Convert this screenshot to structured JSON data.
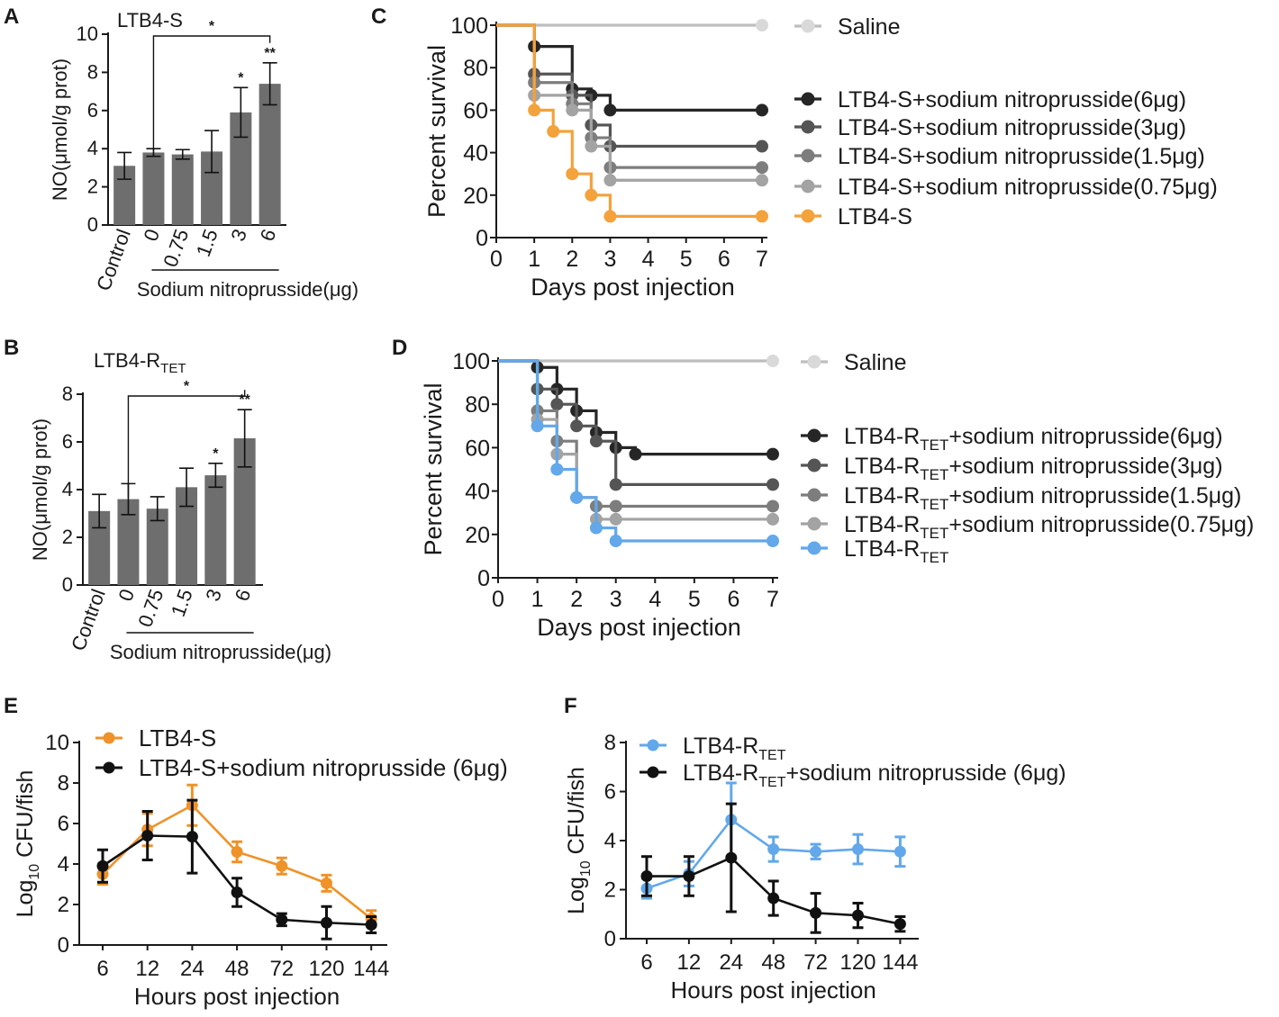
{
  "colors": {
    "bar": "#6e6e6e",
    "orange": "#f4a23b",
    "orange_line": "#ef9228",
    "blue": "#62a8ea",
    "black": "#111111",
    "g6": "#262626",
    "g3": "#555555",
    "g15": "#7d7d7d",
    "g075": "#a3a3a3",
    "saline": "#bdbdbd",
    "saline_dot": "#d9d9d9"
  },
  "chart_data": [
    {
      "panel": "A",
      "type": "bar",
      "title": "LTB4-S",
      "ylabel": "NO(μmol/g prot)",
      "ylim": [
        0,
        10
      ],
      "yticks": [
        "0",
        "2",
        "4",
        "6",
        "8",
        "10"
      ],
      "categories": [
        "Control",
        "0",
        "0.75",
        "1.5",
        "3",
        "6"
      ],
      "values": [
        3.1,
        3.8,
        3.7,
        3.85,
        5.9,
        7.4
      ],
      "errors": [
        0.7,
        0.2,
        0.25,
        1.1,
        1.3,
        1.1
      ],
      "group_label": "Sodium nitroprusside(μg)",
      "significance": [
        "",
        "",
        "",
        "",
        "*",
        "**"
      ],
      "bracket": {
        "from": "0",
        "to": "6",
        "label": "*"
      }
    },
    {
      "panel": "B",
      "type": "bar",
      "title_main": "LTB4-R",
      "title_sub": "TET",
      "ylabel": "NO(μmol/g prot)",
      "ylim": [
        0,
        8
      ],
      "yticks": [
        "0",
        "2",
        "4",
        "6",
        "8"
      ],
      "categories": [
        "Control",
        "0",
        "0.75",
        "1.5",
        "3",
        "6"
      ],
      "values": [
        3.1,
        3.6,
        3.2,
        4.1,
        4.6,
        6.15
      ],
      "errors": [
        0.7,
        0.65,
        0.5,
        0.8,
        0.5,
        1.2
      ],
      "group_label": "Sodium nitroprusside(μg)",
      "significance": [
        "",
        "",
        "",
        "",
        "*",
        "**"
      ],
      "bracket": {
        "from": "0",
        "to": "6",
        "label": "*"
      }
    },
    {
      "panel": "C",
      "type": "line",
      "subtype": "survival",
      "xlabel": "Days post injection",
      "ylabel": "Percent survival",
      "xlim": [
        0,
        7
      ],
      "ylim": [
        0,
        100
      ],
      "xticks": [
        "0",
        "1",
        "2",
        "3",
        "4",
        "5",
        "6",
        "7"
      ],
      "yticks": [
        "0",
        "20",
        "40",
        "60",
        "80",
        "100"
      ],
      "series": [
        {
          "name": "Saline",
          "color_key": "saline",
          "dot_key": "saline_dot",
          "steps": [
            [
              0,
              100
            ],
            [
              7,
              100
            ]
          ],
          "marks": [
            7
          ]
        },
        {
          "name": "LTB4-S+sodium nitroprusside(6μg)",
          "color_key": "g6",
          "steps": [
            [
              0,
              100
            ],
            [
              1,
              90
            ],
            [
              2,
              70
            ],
            [
              2.5,
              67
            ],
            [
              3,
              60
            ],
            [
              7,
              60
            ]
          ],
          "marks": [
            1,
            2,
            2.5,
            3,
            7
          ]
        },
        {
          "name": "LTB4-S+sodium nitroprusside(3μg)",
          "color_key": "g3",
          "steps": [
            [
              0,
              100
            ],
            [
              1,
              77
            ],
            [
              2,
              67
            ],
            [
              2.5,
              53
            ],
            [
              3,
              43
            ],
            [
              7,
              43
            ]
          ],
          "marks": [
            1,
            2,
            2.5,
            3,
            7
          ]
        },
        {
          "name": "LTB4-S+sodium nitroprusside(1.5μg)",
          "color_key": "g15",
          "steps": [
            [
              0,
              100
            ],
            [
              1,
              73
            ],
            [
              2,
              63
            ],
            [
              2.5,
              47
            ],
            [
              3,
              33
            ],
            [
              7,
              33
            ]
          ],
          "marks": [
            1,
            2,
            2.5,
            3,
            7
          ]
        },
        {
          "name": "LTB4-S+sodium nitroprusside(0.75μg)",
          "color_key": "g075",
          "steps": [
            [
              0,
              100
            ],
            [
              1,
              67
            ],
            [
              2,
              60
            ],
            [
              2.5,
              43
            ],
            [
              3,
              27
            ],
            [
              7,
              27
            ]
          ],
          "marks": [
            1,
            2,
            2.5,
            3,
            7
          ]
        },
        {
          "name": "LTB4-S",
          "color_key": "orange",
          "steps": [
            [
              0,
              100
            ],
            [
              1,
              60
            ],
            [
              1.5,
              50
            ],
            [
              2,
              30
            ],
            [
              2.5,
              20
            ],
            [
              3,
              10
            ],
            [
              7,
              10
            ]
          ],
          "marks": [
            1,
            1.5,
            2,
            2.5,
            3,
            7
          ]
        }
      ],
      "legend": [
        {
          "text": "Saline",
          "sub": "",
          "tail": ""
        },
        {
          "text": "LTB4-S+sodium nitroprusside(6μg)",
          "sub": "",
          "tail": ""
        },
        {
          "text": "LTB4-S+sodium nitroprusside(3μg)",
          "sub": "",
          "tail": ""
        },
        {
          "text": "LTB4-S+sodium nitroprusside(1.5μg)",
          "sub": "",
          "tail": ""
        },
        {
          "text": "LTB4-S+sodium nitroprusside(0.75μg)",
          "sub": "",
          "tail": ""
        },
        {
          "text": "LTB4-S",
          "sub": "",
          "tail": ""
        }
      ]
    },
    {
      "panel": "D",
      "type": "line",
      "subtype": "survival",
      "xlabel": "Days post injection",
      "ylabel": "Percent survival",
      "xlim": [
        0,
        7
      ],
      "ylim": [
        0,
        100
      ],
      "xticks": [
        "0",
        "1",
        "2",
        "3",
        "4",
        "5",
        "6",
        "7"
      ],
      "yticks": [
        "0",
        "20",
        "40",
        "60",
        "80",
        "100"
      ],
      "series": [
        {
          "name": "Saline",
          "color_key": "saline",
          "dot_key": "saline_dot",
          "steps": [
            [
              0,
              100
            ],
            [
              7,
              100
            ]
          ],
          "marks": [
            7
          ]
        },
        {
          "name": "LTB4-RTET+sodium nitroprusside(6μg)",
          "color_key": "g6",
          "steps": [
            [
              0,
              100
            ],
            [
              1,
              97
            ],
            [
              1.5,
              87
            ],
            [
              2,
              77
            ],
            [
              2.5,
              67
            ],
            [
              3,
              60
            ],
            [
              3.5,
              57
            ],
            [
              7,
              57
            ]
          ],
          "marks": [
            1,
            1.5,
            2,
            2.5,
            3,
            3.5,
            7
          ]
        },
        {
          "name": "LTB4-RTET+sodium nitroprusside(3μg)",
          "color_key": "g3",
          "steps": [
            [
              0,
              100
            ],
            [
              1,
              87
            ],
            [
              1.5,
              80
            ],
            [
              2,
              70
            ],
            [
              2.5,
              63
            ],
            [
              3,
              43
            ],
            [
              7,
              43
            ]
          ],
          "marks": [
            1,
            1.5,
            2,
            2.5,
            3,
            7
          ]
        },
        {
          "name": "LTB4-RTET+sodium nitroprusside(1.5μg)",
          "color_key": "g15",
          "steps": [
            [
              0,
              100
            ],
            [
              1,
              77
            ],
            [
              1.5,
              63
            ],
            [
              2,
              37
            ],
            [
              2.5,
              33
            ],
            [
              3,
              33
            ],
            [
              7,
              33
            ]
          ],
          "marks": [
            1,
            1.5,
            2,
            2.5,
            3,
            7
          ]
        },
        {
          "name": "LTB4-RTET+sodium nitroprusside(0.75μg)",
          "color_key": "g075",
          "steps": [
            [
              0,
              100
            ],
            [
              1,
              73
            ],
            [
              1.5,
              57
            ],
            [
              2,
              37
            ],
            [
              2.5,
              27
            ],
            [
              3,
              27
            ],
            [
              7,
              27
            ]
          ],
          "marks": [
            1,
            1.5,
            2,
            2.5,
            3,
            7
          ]
        },
        {
          "name": "LTB4-RTET",
          "color_key": "blue",
          "steps": [
            [
              0,
              100
            ],
            [
              1,
              70
            ],
            [
              1.5,
              50
            ],
            [
              2,
              37
            ],
            [
              2.5,
              23
            ],
            [
              3,
              17
            ],
            [
              7,
              17
            ]
          ],
          "marks": [
            1,
            1.5,
            2,
            2.5,
            3,
            7
          ]
        }
      ],
      "legend": [
        {
          "text": "Saline",
          "sub": "",
          "tail": ""
        },
        {
          "text": "LTB4-R",
          "sub": "TET",
          "tail": "+sodium nitroprusside(6μg)"
        },
        {
          "text": "LTB4-R",
          "sub": "TET",
          "tail": "+sodium nitroprusside(3μg)"
        },
        {
          "text": "LTB4-R",
          "sub": "TET",
          "tail": "+sodium nitroprusside(1.5μg)"
        },
        {
          "text": "LTB4-R",
          "sub": "TET",
          "tail": "+sodium nitroprusside(0.75μg)"
        },
        {
          "text": "LTB4-R",
          "sub": "TET",
          "tail": ""
        }
      ]
    },
    {
      "panel": "E",
      "type": "line",
      "xlabel": "Hours post injection",
      "ylabel_main": "Log",
      "ylabel_sub": "10",
      "ylabel_tail": " CFU/fish",
      "ylim": [
        0,
        10
      ],
      "yticks": [
        "0",
        "2",
        "4",
        "6",
        "8",
        "10"
      ],
      "categories": [
        "6",
        "12",
        "24",
        "48",
        "72",
        "120",
        "144"
      ],
      "series": [
        {
          "name": "LTB4-S",
          "color_key": "orange_line",
          "values": [
            3.5,
            5.7,
            6.9,
            4.6,
            3.9,
            3.05,
            1.3
          ],
          "errors": [
            0.5,
            0.8,
            1.0,
            0.5,
            0.4,
            0.4,
            0.4
          ]
        },
        {
          "name": "LTB4-S+sodium nitroprusside (6μg)",
          "color_key": "black",
          "values": [
            3.9,
            5.4,
            5.35,
            2.6,
            1.25,
            1.1,
            1.0
          ],
          "errors": [
            0.8,
            1.2,
            1.8,
            0.7,
            0.3,
            0.8,
            0.4
          ]
        }
      ],
      "legend": [
        {
          "text": "LTB4-S",
          "sub": "",
          "tail": ""
        },
        {
          "text": "LTB4-S+sodium nitroprusside (6μg)",
          "sub": "",
          "tail": ""
        }
      ]
    },
    {
      "panel": "F",
      "type": "line",
      "xlabel": "Hours post injection",
      "ylabel_main": "Log",
      "ylabel_sub": "10",
      "ylabel_tail": " CFU/fish",
      "ylim": [
        0,
        8
      ],
      "yticks": [
        "0",
        "2",
        "4",
        "6",
        "8"
      ],
      "categories": [
        "6",
        "12",
        "24",
        "48",
        "72",
        "120",
        "144"
      ],
      "series": [
        {
          "name": "LTB4-RTET",
          "color_key": "blue",
          "values": [
            2.05,
            2.65,
            4.85,
            3.65,
            3.55,
            3.65,
            3.55
          ],
          "errors": [
            0.4,
            0.5,
            1.5,
            0.5,
            0.3,
            0.6,
            0.6
          ]
        },
        {
          "name": "LTB4-RTET+sodium nitroprusside (6μg)",
          "color_key": "black",
          "values": [
            2.55,
            2.55,
            3.3,
            1.65,
            1.05,
            0.95,
            0.6
          ],
          "errors": [
            0.8,
            0.8,
            2.2,
            0.7,
            0.8,
            0.5,
            0.3
          ]
        }
      ],
      "legend": [
        {
          "text": "LTB4-R",
          "sub": "TET",
          "tail": ""
        },
        {
          "text": "LTB4-R",
          "sub": "TET",
          "tail": "+sodium nitroprusside (6μg)"
        }
      ]
    }
  ]
}
